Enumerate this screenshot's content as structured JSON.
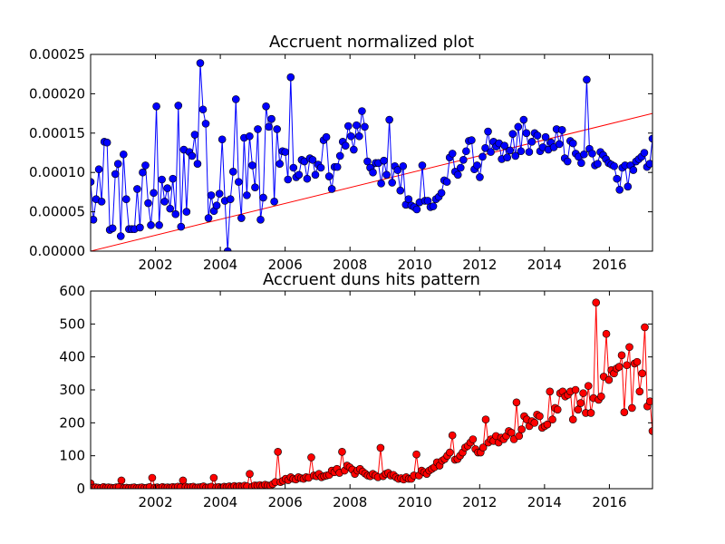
{
  "chart_data": [
    {
      "type": "line",
      "title": "Accruent normalized plot",
      "xlabel": "",
      "ylabel": "",
      "xlim": [
        2000.0,
        2017.33
      ],
      "ylim": [
        0,
        0.00025
      ],
      "x_ticks": [
        2002,
        2004,
        2006,
        2008,
        2010,
        2012,
        2014,
        2016
      ],
      "x_tick_labels": [
        "2002",
        "2004",
        "2006",
        "2008",
        "2010",
        "2012",
        "2014",
        "2016"
      ],
      "y_ticks": [
        0,
        5e-05,
        0.0001,
        0.00015,
        0.0002,
        0.00025
      ],
      "y_tick_labels": [
        "0.00000",
        "0.00005",
        "0.00010",
        "0.00015",
        "0.00020",
        "0.00025"
      ],
      "grid": false,
      "series_color": "#0000ff",
      "trend_color": "#ff0000",
      "trend_line": {
        "x": [
          2000.0,
          2017.33
        ],
        "y": [
          0,
          0.000175
        ]
      },
      "series": [
        {
          "name": "",
          "values": [
            8.8e-05,
            4e-05,
            6.6e-05,
            0.000104,
            6.3e-05,
            0.000139,
            0.000138,
            2.7e-05,
            2.9e-05,
            9.8e-05,
            0.000111,
            1.9e-05,
            0.000123,
            6.6e-05,
            2.8e-05,
            2.8e-05,
            2.8e-05,
            7.9e-05,
            3e-05,
            0.0001,
            0.000109,
            6.1e-05,
            3.3e-05,
            7.4e-05,
            0.000184,
            3.3e-05,
            9.1e-05,
            6.3e-05,
            8e-05,
            5.4e-05,
            9.2e-05,
            4.7e-05,
            0.000185,
            3.1e-05,
            0.000129,
            5e-05,
            0.000126,
            0.000121,
            0.000148,
            0.000111,
            0.000239,
            0.00018,
            0.000162,
            4.2e-05,
            7.1e-05,
            5.1e-05,
            5.8e-05,
            7.3e-05,
            0.000142,
            6.4e-05,
            0.0,
            6.6e-05,
            0.000101,
            0.000193,
            8.8e-05,
            4.2e-05,
            0.000144,
            7.1e-05,
            0.000146,
            0.000109,
            8.1e-05,
            0.000155,
            4e-05,
            6.8e-05,
            0.000184,
            0.000158,
            0.000168,
            6.3e-05,
            0.000155,
            0.000111,
            0.000127,
            0.000126,
            9.1e-05,
            0.000221,
            0.000106,
            9.4e-05,
            9.7e-05,
            0.000116,
            0.000114,
            9.2e-05,
            0.000118,
            0.000116,
            9.7e-05,
            0.00011,
            0.000106,
            0.000141,
            0.000145,
            9.5e-05,
            7.9e-05,
            0.000107,
            0.000107,
            0.000121,
            0.000139,
            0.000134,
            0.000159,
            0.000146,
            0.000129,
            0.00016,
            0.000146,
            0.000178,
            0.000158,
            0.000114,
            0.000106,
            0.0001,
            0.000112,
            0.000112,
            8.6e-05,
            0.000115,
            9.7e-05,
            0.000167,
            8.7e-05,
            0.000108,
            0.000103,
            7.7e-05,
            0.000108,
            5.9e-05,
            6.6e-05,
            5.8e-05,
            5.6e-05,
            5.3e-05,
            6.2e-05,
            0.000109,
            6.4e-05,
            6.4e-05,
            5.6e-05,
            5.7e-05,
            6.6e-05,
            6.9e-05,
            7.4e-05,
            9e-05,
            8.8e-05,
            0.000119,
            0.000124,
            0.000101,
            9.7e-05,
            0.000106,
            0.000116,
            0.000127,
            0.00014,
            0.000141,
            0.000104,
            0.000109,
            9.4e-05,
            0.00012,
            0.000131,
            0.000152,
            0.000126,
            0.000139,
            0.000133,
            0.000137,
            0.000117,
            0.000134,
            0.000119,
            0.000128,
            0.000149,
            0.000121,
            0.000158,
            0.000127,
            0.000167,
            0.00015,
            0.000126,
            0.000139,
            0.00015,
            0.000147,
            0.000127,
            0.000132,
            0.000145,
            0.000129,
            0.000138,
            0.000132,
            0.000155,
            0.000136,
            0.000154,
            0.000118,
            0.000114,
            0.00014,
            0.000137,
            0.000124,
            0.00012,
            0.000112,
            0.000123,
            0.000218,
            0.00013,
            0.000124,
            0.000109,
            0.000111,
            0.000126,
            0.000122,
            0.000117,
            0.000112,
            0.00011,
            0.000108,
            9.2e-05,
            7.8e-05,
            0.000106,
            0.000109,
            8.2e-05,
            0.000109,
            0.000103,
            0.000114,
            0.000117,
            0.00012,
            0.000125,
            0.000107,
            0.000111,
            0.000143
          ]
        }
      ]
    },
    {
      "type": "line",
      "title": "Accruent duns hits pattern",
      "xlabel": "",
      "ylabel": "",
      "xlim": [
        2000.0,
        2017.33
      ],
      "ylim": [
        0,
        600
      ],
      "x_ticks": [
        2002,
        2004,
        2006,
        2008,
        2010,
        2012,
        2014,
        2016
      ],
      "x_tick_labels": [
        "2002",
        "2004",
        "2006",
        "2008",
        "2010",
        "2012",
        "2014",
        "2016"
      ],
      "y_ticks": [
        0,
        100,
        200,
        300,
        400,
        500,
        600
      ],
      "y_tick_labels": [
        "0",
        "100",
        "200",
        "300",
        "400",
        "500",
        "600"
      ],
      "grid": false,
      "series_color": "#ff0000",
      "series": [
        {
          "name": "",
          "values": [
            16,
            3,
            4,
            3,
            2,
            5,
            3,
            4,
            3,
            2,
            4,
            5,
            25,
            2,
            3,
            2,
            3,
            4,
            2,
            3,
            4,
            2,
            3,
            5,
            33,
            3,
            4,
            2,
            5,
            3,
            4,
            3,
            5,
            4,
            6,
            4,
            25,
            6,
            4,
            5,
            6,
            3,
            4,
            5,
            7,
            3,
            4,
            6,
            33,
            4,
            5,
            3,
            6,
            5,
            7,
            4,
            8,
            5,
            8,
            6,
            9,
            7,
            45,
            6,
            10,
            9,
            11,
            8,
            12,
            10,
            9,
            14,
            20,
            112,
            20,
            24,
            30,
            26,
            35,
            30,
            28,
            35,
            32,
            30,
            35,
            33,
            95,
            40,
            38,
            45,
            35,
            38,
            40,
            42,
            55,
            50,
            60,
            48,
            112,
            55,
            70,
            65,
            58,
            45,
            55,
            60,
            52,
            46,
            40,
            38,
            45,
            40,
            35,
            124,
            38,
            45,
            48,
            40,
            42,
            35,
            30,
            32,
            28,
            35,
            30,
            30,
            40,
            104,
            40,
            55,
            50,
            45,
            55,
            60,
            65,
            80,
            70,
            85,
            90,
            100,
            110,
            162,
            88,
            90,
            100,
            110,
            125,
            130,
            140,
            150,
            120,
            110,
            110,
            125,
            210,
            140,
            150,
            145,
            160,
            140,
            155,
            150,
            160,
            175,
            170,
            150,
            262,
            160,
            180,
            220,
            210,
            190,
            205,
            200,
            225,
            220,
            185,
            190,
            195,
            295,
            210,
            245,
            240,
            290,
            295,
            280,
            285,
            295,
            210,
            300,
            240,
            260,
            290,
            230,
            312,
            230,
            275,
            565,
            270,
            280,
            340,
            470,
            330,
            360,
            350,
            365,
            370,
            405,
            232,
            375,
            430,
            245,
            380,
            385,
            295,
            350,
            490,
            250,
            265,
            175
          ]
        }
      ]
    }
  ]
}
